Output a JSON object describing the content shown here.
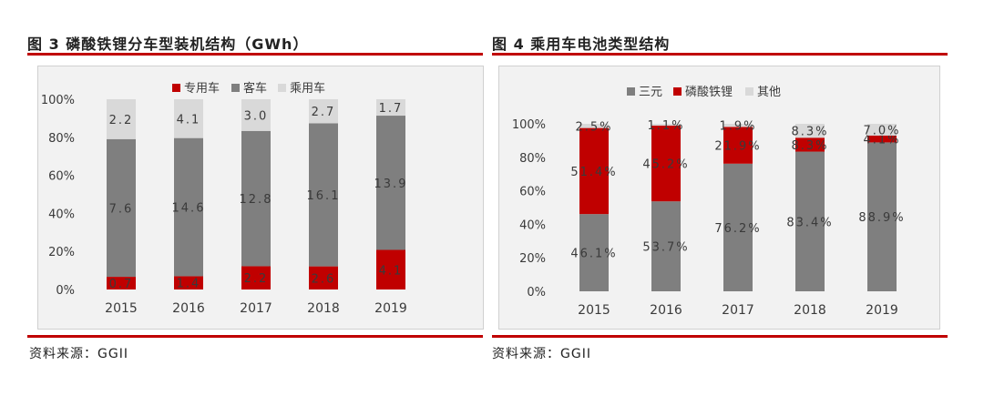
{
  "colors": {
    "red": "#c00000",
    "gray": "#7f7f7f",
    "light": "#d9d9d9",
    "bg": "#f2f2f2",
    "text": "#3a3a3a"
  },
  "left": {
    "title": "图 3   磷酸铁锂分车型装机结构（GWh）",
    "source": "资料来源：GGII"
  },
  "right": {
    "title": "图 4   乘用车电池类型结构",
    "source": "资料来源：GGII"
  },
  "chart_data": [
    {
      "type": "bar",
      "stacked": "percent",
      "categories": [
        "2015",
        "2016",
        "2017",
        "2018",
        "2019"
      ],
      "yticks": [
        "0%",
        "20%",
        "40%",
        "60%",
        "80%",
        "100%"
      ],
      "ylim": [
        0,
        100
      ],
      "legend_position": "top",
      "series": [
        {
          "name": "专用车",
          "color": "#c00000",
          "values": [
            0.7,
            1.4,
            2.2,
            2.6,
            4.1
          ],
          "labels": [
            "0.7",
            "1.4",
            "2.2",
            "2.6",
            "4.1"
          ]
        },
        {
          "name": "客车",
          "color": "#7f7f7f",
          "values": [
            7.6,
            14.6,
            12.8,
            16.1,
            13.9
          ],
          "labels": [
            "7.6",
            "14.6",
            "12.8",
            "16.1",
            "13.9"
          ]
        },
        {
          "name": "乘用车",
          "color": "#d9d9d9",
          "values": [
            2.2,
            4.1,
            3.0,
            2.7,
            1.7
          ],
          "labels": [
            "2.2",
            "4.1",
            "3.0",
            "2.7",
            "1.7"
          ]
        }
      ]
    },
    {
      "type": "bar",
      "stacked": "percent",
      "categories": [
        "2015",
        "2016",
        "2017",
        "2018",
        "2019"
      ],
      "yticks": [
        "0%",
        "20%",
        "40%",
        "60%",
        "80%",
        "100%"
      ],
      "ylim": [
        0,
        100
      ],
      "legend_position": "top",
      "series": [
        {
          "name": "三元",
          "color": "#7f7f7f",
          "values": [
            46.1,
            53.7,
            76.2,
            83.4,
            88.9
          ],
          "labels": [
            "46.1%",
            "53.7%",
            "76.2%",
            "83.4%",
            "88.9%"
          ]
        },
        {
          "name": "磷酸铁锂",
          "color": "#c00000",
          "values": [
            51.4,
            45.2,
            21.9,
            8.3,
            4.1
          ],
          "labels": [
            "51.4%",
            "45.2%",
            "21.9%",
            "8.3%",
            "4.1%"
          ]
        },
        {
          "name": "其他",
          "color": "#d9d9d9",
          "values": [
            2.5,
            1.1,
            1.9,
            8.3,
            7.0
          ],
          "labels": [
            "2.5%",
            "1.1%",
            "1.9%",
            "8.3%",
            "7.0%"
          ]
        }
      ]
    }
  ]
}
